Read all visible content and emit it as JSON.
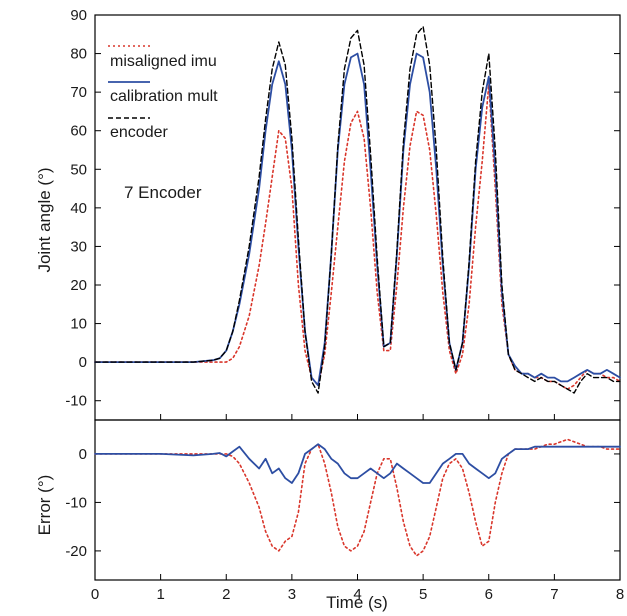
{
  "chart_data": [
    {
      "type": "line",
      "panel": "top",
      "ylabel": "Joint angle (°)",
      "xlim": [
        0,
        8
      ],
      "ylim": [
        -15,
        90
      ],
      "xticks": [
        0,
        1,
        2,
        3,
        4,
        5,
        6,
        7,
        8
      ],
      "yticks": [
        -10,
        0,
        10,
        20,
        30,
        40,
        50,
        60,
        70,
        80,
        90
      ],
      "annotation": "7 Encoder",
      "legend_position": "top-left",
      "grid": false,
      "x": [
        0,
        0.5,
        1.0,
        1.5,
        1.8,
        1.9,
        2.0,
        2.1,
        2.2,
        2.35,
        2.5,
        2.6,
        2.7,
        2.8,
        2.9,
        3.0,
        3.1,
        3.2,
        3.3,
        3.4,
        3.5,
        3.6,
        3.7,
        3.8,
        3.9,
        4.0,
        4.1,
        4.2,
        4.3,
        4.4,
        4.5,
        4.6,
        4.7,
        4.8,
        4.9,
        5.0,
        5.1,
        5.2,
        5.3,
        5.4,
        5.5,
        5.6,
        5.7,
        5.8,
        5.9,
        6.0,
        6.1,
        6.2,
        6.3,
        6.4,
        6.5,
        6.6,
        6.7,
        6.8,
        6.9,
        7.0,
        7.1,
        7.2,
        7.3,
        7.4,
        7.5,
        7.6,
        7.7,
        7.8,
        7.9,
        8.0
      ],
      "series": [
        {
          "name": "misaligned imu",
          "color": "#d9362b",
          "dash": "dotted",
          "values": [
            0,
            0,
            0,
            0,
            0,
            0,
            0,
            1,
            4,
            12,
            25,
            36,
            48,
            60,
            58,
            45,
            20,
            3,
            -4,
            -6,
            2,
            18,
            35,
            52,
            62,
            65,
            58,
            40,
            18,
            3,
            3,
            20,
            40,
            56,
            65,
            64,
            55,
            38,
            18,
            3,
            -3,
            2,
            15,
            35,
            52,
            72,
            45,
            15,
            2,
            -2,
            -3,
            -3,
            -4,
            -4,
            -5,
            -5,
            -6,
            -7,
            -6,
            -4,
            -2,
            -3,
            -3,
            -4,
            -4,
            -5
          ]
        },
        {
          "name": "calibration mult",
          "color": "#2d4ea3",
          "dash": "solid",
          "values": [
            0,
            0,
            0,
            0,
            0.5,
            1,
            3,
            8,
            15,
            28,
            45,
            60,
            72,
            78,
            72,
            55,
            30,
            8,
            -4,
            -6,
            5,
            28,
            55,
            72,
            79,
            80,
            72,
            50,
            25,
            4,
            5,
            28,
            55,
            72,
            80,
            79,
            70,
            50,
            25,
            5,
            -2,
            5,
            25,
            50,
            66,
            74,
            50,
            18,
            2,
            -1,
            -3,
            -3,
            -4,
            -3,
            -4,
            -4,
            -5,
            -5,
            -4,
            -3,
            -2,
            -3,
            -3,
            -2,
            -3,
            -4
          ]
        },
        {
          "name": "encoder",
          "color": "#000000",
          "dash": "dashed",
          "values": [
            0,
            0,
            0,
            0,
            0.5,
            1,
            3,
            8,
            16,
            30,
            48,
            63,
            76,
            83,
            77,
            58,
            32,
            8,
            -5,
            -8,
            4,
            28,
            56,
            76,
            84,
            86,
            77,
            54,
            27,
            4,
            5,
            29,
            57,
            76,
            85,
            87,
            77,
            55,
            27,
            5,
            -2,
            5,
            26,
            52,
            70,
            80,
            55,
            20,
            2,
            -2,
            -3,
            -4,
            -5,
            -4,
            -5,
            -5,
            -6,
            -7,
            -8,
            -5,
            -3,
            -4,
            -4,
            -4,
            -5,
            -5
          ]
        }
      ]
    },
    {
      "type": "line",
      "panel": "bottom",
      "ylabel": "Error (°)",
      "xlabel": "Time (s)",
      "xlim": [
        0,
        8
      ],
      "ylim": [
        -26,
        7
      ],
      "xticks": [
        0,
        1,
        2,
        3,
        4,
        5,
        6,
        7,
        8
      ],
      "yticks": [
        -20,
        -10,
        0
      ],
      "grid": false,
      "x": [
        0,
        0.5,
        1.0,
        1.5,
        1.8,
        1.9,
        2.0,
        2.1,
        2.2,
        2.35,
        2.5,
        2.6,
        2.7,
        2.8,
        2.9,
        3.0,
        3.1,
        3.2,
        3.3,
        3.4,
        3.5,
        3.6,
        3.7,
        3.8,
        3.9,
        4.0,
        4.1,
        4.2,
        4.3,
        4.4,
        4.5,
        4.6,
        4.7,
        4.8,
        4.9,
        5.0,
        5.1,
        5.2,
        5.3,
        5.4,
        5.5,
        5.6,
        5.7,
        5.8,
        5.9,
        6.0,
        6.1,
        6.2,
        6.3,
        6.4,
        6.5,
        6.6,
        6.7,
        6.8,
        6.9,
        7.0,
        7.1,
        7.2,
        7.3,
        7.4,
        7.5,
        7.6,
        7.7,
        7.8,
        7.9,
        8.0
      ],
      "series": [
        {
          "name": "misaligned imu",
          "color": "#d9362b",
          "dash": "dotted",
          "values": [
            0,
            0,
            0,
            0,
            0,
            0,
            0,
            -0.5,
            -2,
            -6,
            -11,
            -16,
            -19,
            -20,
            -18,
            -17,
            -12,
            -2,
            1,
            2,
            -2,
            -8,
            -15,
            -19,
            -20,
            -19,
            -16,
            -10,
            -4,
            -1,
            -1,
            -7,
            -14,
            -19,
            -21,
            -20,
            -17,
            -11,
            -5,
            -2,
            -1,
            -3,
            -8,
            -14,
            -19,
            -18,
            -10,
            -4,
            0,
            1,
            1,
            1,
            1,
            1.5,
            2,
            2,
            2.5,
            3,
            2.5,
            2,
            1.5,
            1.5,
            1.5,
            1,
            1,
            1
          ]
        },
        {
          "name": "calibration mult",
          "color": "#2d4ea3",
          "dash": "solid",
          "values": [
            0,
            0,
            0,
            -0.3,
            0,
            0.2,
            -0.5,
            0.5,
            1.5,
            -1,
            -3,
            -1,
            -4,
            -3,
            -5,
            -6,
            -4,
            0,
            1,
            2,
            1,
            -1,
            -2,
            -4,
            -5,
            -5,
            -4,
            -3,
            -4,
            -5,
            -4,
            -2,
            -3,
            -4,
            -5,
            -6,
            -6,
            -4,
            -2,
            -1,
            0,
            0,
            -2,
            -3,
            -4,
            -5,
            -4,
            -1,
            0,
            1,
            1,
            1,
            1.5,
            1.5,
            1.5,
            1.5,
            1.5,
            1.5,
            1.5,
            1.5,
            1.5,
            1.5,
            1.5,
            1.5,
            1.5,
            1.5
          ]
        }
      ]
    }
  ],
  "axes": {
    "top_ylabel": "Joint angle (°)",
    "bottom_ylabel": "Error (°)",
    "xlabel": "Time (s)"
  },
  "legend": [
    {
      "label": "misaligned imu",
      "color": "#d9362b",
      "dash": "dotted"
    },
    {
      "label": "calibration mult",
      "color": "#2d4ea3",
      "dash": "solid"
    },
    {
      "label": "encoder",
      "color": "#000000",
      "dash": "dashed"
    }
  ],
  "annotation": "7 Encoder"
}
